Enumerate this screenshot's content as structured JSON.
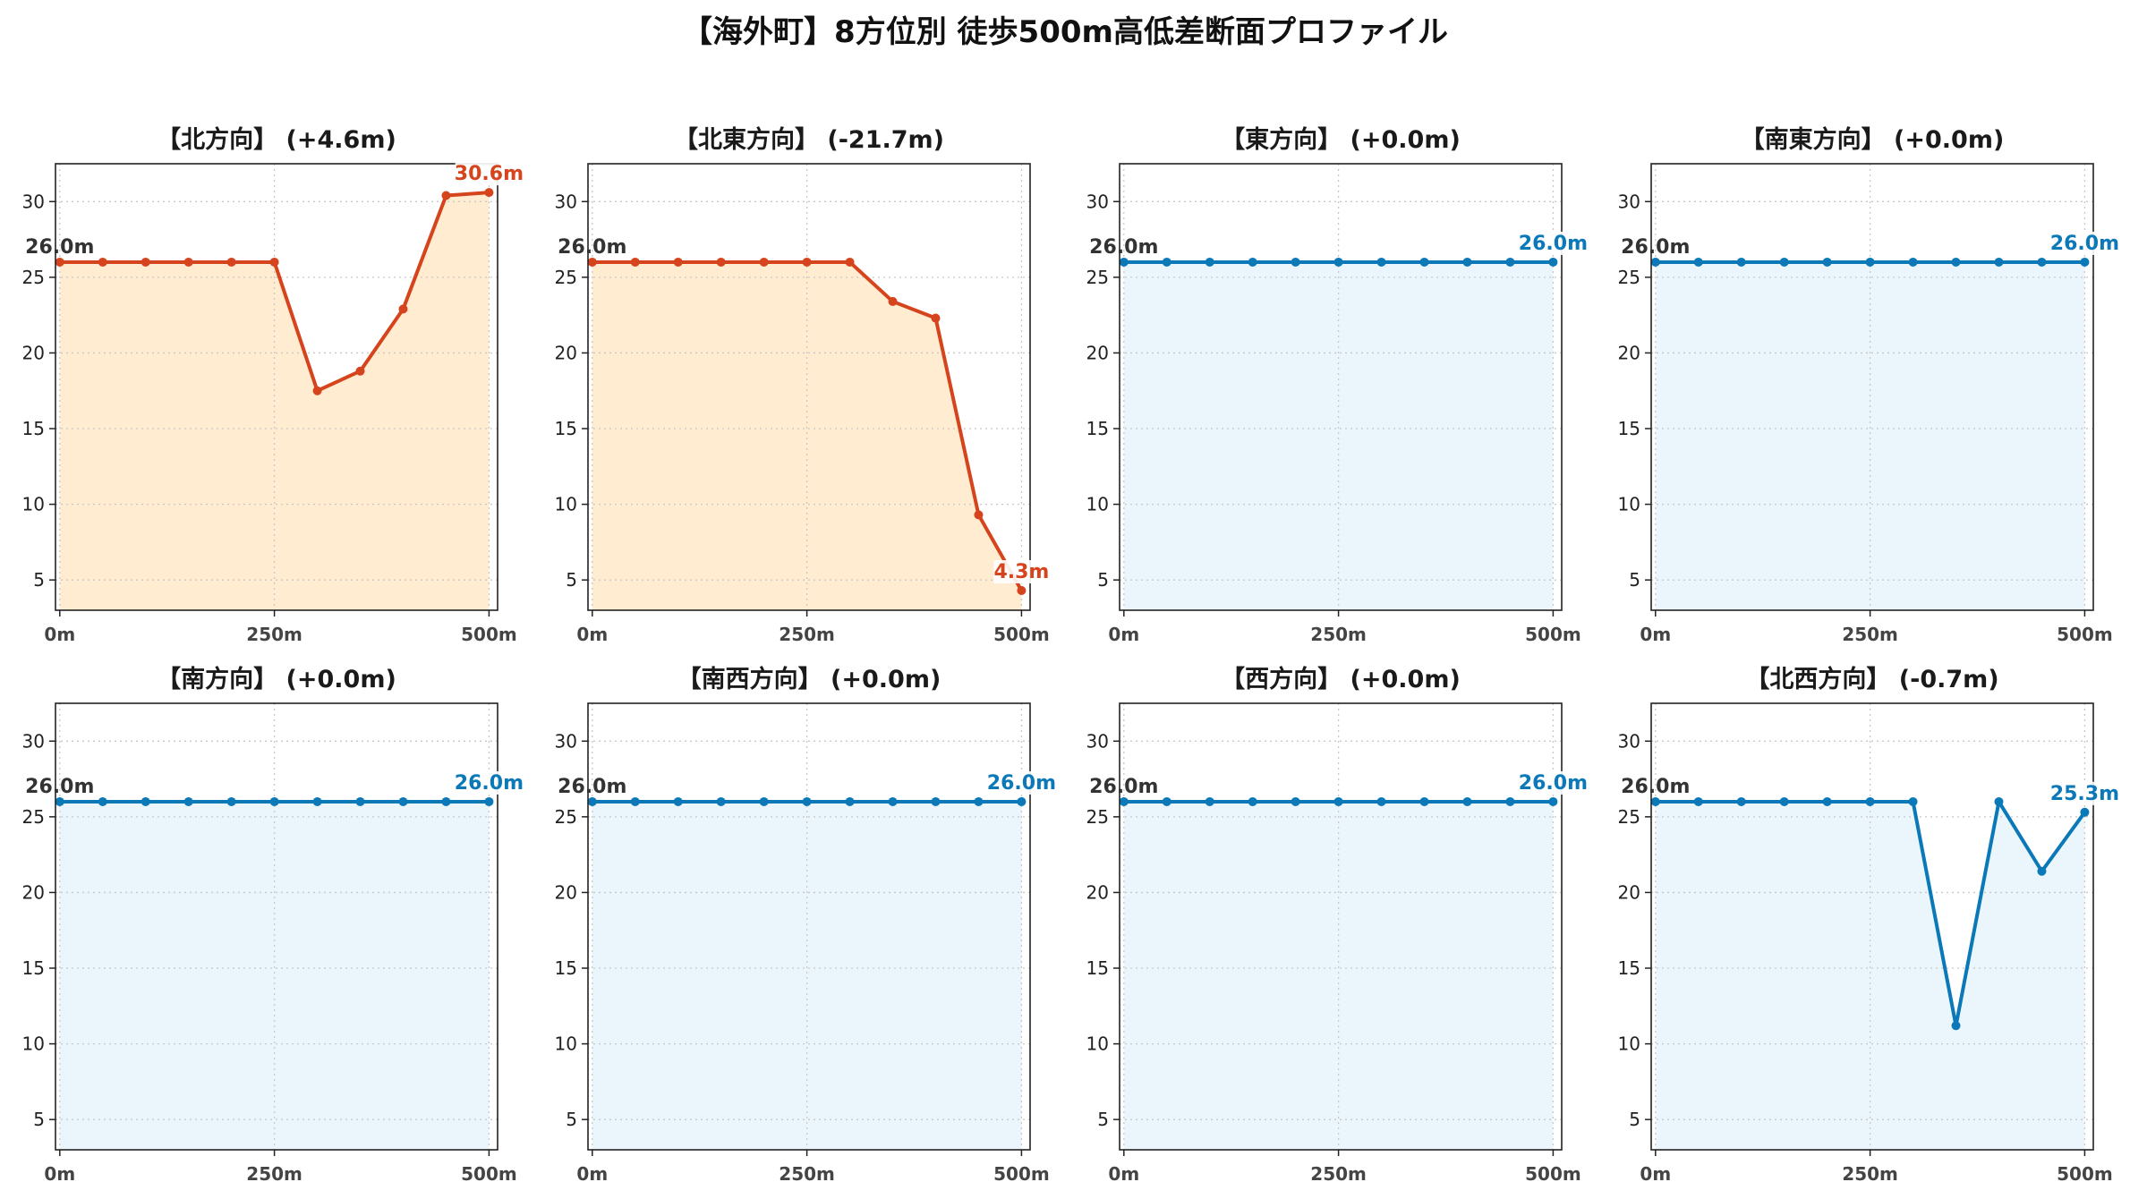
{
  "title": "【海外町】8方位別 徒歩500m高低差断面プロファイル",
  "colors": {
    "down_line": "#d5441c",
    "down_fill": "#ffecd1",
    "flat_line": "#0b78b8",
    "flat_fill": "#eaf6fb",
    "start_label": "#333333",
    "grid": "#c8c8c8",
    "axis": "#222222"
  },
  "chart_data": [
    {
      "type": "area",
      "title": "【北方向】 (+4.6m)",
      "x": [
        0,
        50,
        100,
        150,
        200,
        250,
        300,
        350,
        400,
        450,
        500
      ],
      "values": [
        26.0,
        26.0,
        26.0,
        26.0,
        26.0,
        26.0,
        17.5,
        18.8,
        22.9,
        30.4,
        30.6
      ],
      "start_label": "26.0m",
      "end_label": "30.6m",
      "color_scheme": "down",
      "xlim": [
        -5,
        510
      ],
      "ylim": [
        3,
        32.5
      ],
      "xticks": [
        0,
        250,
        500
      ],
      "xtick_labels": [
        "0m",
        "250m",
        "500m"
      ],
      "yticks": [
        5,
        10,
        15,
        20,
        25,
        30
      ],
      "ytick_labels": [
        "5",
        "10",
        "15",
        "20",
        "25",
        "30"
      ],
      "grid": true
    },
    {
      "type": "area",
      "title": "【北東方向】 (-21.7m)",
      "x": [
        0,
        50,
        100,
        150,
        200,
        250,
        300,
        350,
        400,
        450,
        500
      ],
      "values": [
        26.0,
        26.0,
        26.0,
        26.0,
        26.0,
        26.0,
        26.0,
        23.4,
        22.3,
        9.3,
        4.3
      ],
      "start_label": "26.0m",
      "end_label": "4.3m",
      "color_scheme": "down",
      "xlim": [
        -5,
        510
      ],
      "ylim": [
        3,
        32.5
      ],
      "xticks": [
        0,
        250,
        500
      ],
      "xtick_labels": [
        "0m",
        "250m",
        "500m"
      ],
      "yticks": [
        5,
        10,
        15,
        20,
        25,
        30
      ],
      "ytick_labels": [
        "5",
        "10",
        "15",
        "20",
        "25",
        "30"
      ],
      "grid": true
    },
    {
      "type": "area",
      "title": "【東方向】 (+0.0m)",
      "x": [
        0,
        50,
        100,
        150,
        200,
        250,
        300,
        350,
        400,
        450,
        500
      ],
      "values": [
        26.0,
        26.0,
        26.0,
        26.0,
        26.0,
        26.0,
        26.0,
        26.0,
        26.0,
        26.0,
        26.0
      ],
      "start_label": "26.0m",
      "end_label": "26.0m",
      "color_scheme": "flat",
      "xlim": [
        -5,
        510
      ],
      "ylim": [
        3,
        32.5
      ],
      "xticks": [
        0,
        250,
        500
      ],
      "xtick_labels": [
        "0m",
        "250m",
        "500m"
      ],
      "yticks": [
        5,
        10,
        15,
        20,
        25,
        30
      ],
      "ytick_labels": [
        "5",
        "10",
        "15",
        "20",
        "25",
        "30"
      ],
      "grid": true
    },
    {
      "type": "area",
      "title": "【南東方向】 (+0.0m)",
      "x": [
        0,
        50,
        100,
        150,
        200,
        250,
        300,
        350,
        400,
        450,
        500
      ],
      "values": [
        26.0,
        26.0,
        26.0,
        26.0,
        26.0,
        26.0,
        26.0,
        26.0,
        26.0,
        26.0,
        26.0
      ],
      "start_label": "26.0m",
      "end_label": "26.0m",
      "color_scheme": "flat",
      "xlim": [
        -5,
        510
      ],
      "ylim": [
        3,
        32.5
      ],
      "xticks": [
        0,
        250,
        500
      ],
      "xtick_labels": [
        "0m",
        "250m",
        "500m"
      ],
      "yticks": [
        5,
        10,
        15,
        20,
        25,
        30
      ],
      "ytick_labels": [
        "5",
        "10",
        "15",
        "20",
        "25",
        "30"
      ],
      "grid": true
    },
    {
      "type": "area",
      "title": "【南方向】 (+0.0m)",
      "x": [
        0,
        50,
        100,
        150,
        200,
        250,
        300,
        350,
        400,
        450,
        500
      ],
      "values": [
        26.0,
        26.0,
        26.0,
        26.0,
        26.0,
        26.0,
        26.0,
        26.0,
        26.0,
        26.0,
        26.0
      ],
      "start_label": "26.0m",
      "end_label": "26.0m",
      "color_scheme": "flat",
      "xlim": [
        -5,
        510
      ],
      "ylim": [
        3,
        32.5
      ],
      "xticks": [
        0,
        250,
        500
      ],
      "xtick_labels": [
        "0m",
        "250m",
        "500m"
      ],
      "yticks": [
        5,
        10,
        15,
        20,
        25,
        30
      ],
      "ytick_labels": [
        "5",
        "10",
        "15",
        "20",
        "25",
        "30"
      ],
      "grid": true
    },
    {
      "type": "area",
      "title": "【南西方向】 (+0.0m)",
      "x": [
        0,
        50,
        100,
        150,
        200,
        250,
        300,
        350,
        400,
        450,
        500
      ],
      "values": [
        26.0,
        26.0,
        26.0,
        26.0,
        26.0,
        26.0,
        26.0,
        26.0,
        26.0,
        26.0,
        26.0
      ],
      "start_label": "26.0m",
      "end_label": "26.0m",
      "color_scheme": "flat",
      "xlim": [
        -5,
        510
      ],
      "ylim": [
        3,
        32.5
      ],
      "xticks": [
        0,
        250,
        500
      ],
      "xtick_labels": [
        "0m",
        "250m",
        "500m"
      ],
      "yticks": [
        5,
        10,
        15,
        20,
        25,
        30
      ],
      "ytick_labels": [
        "5",
        "10",
        "15",
        "20",
        "25",
        "30"
      ],
      "grid": true
    },
    {
      "type": "area",
      "title": "【西方向】 (+0.0m)",
      "x": [
        0,
        50,
        100,
        150,
        200,
        250,
        300,
        350,
        400,
        450,
        500
      ],
      "values": [
        26.0,
        26.0,
        26.0,
        26.0,
        26.0,
        26.0,
        26.0,
        26.0,
        26.0,
        26.0,
        26.0
      ],
      "start_label": "26.0m",
      "end_label": "26.0m",
      "color_scheme": "flat",
      "xlim": [
        -5,
        510
      ],
      "ylim": [
        3,
        32.5
      ],
      "xticks": [
        0,
        250,
        500
      ],
      "xtick_labels": [
        "0m",
        "250m",
        "500m"
      ],
      "yticks": [
        5,
        10,
        15,
        20,
        25,
        30
      ],
      "ytick_labels": [
        "5",
        "10",
        "15",
        "20",
        "25",
        "30"
      ],
      "grid": true
    },
    {
      "type": "area",
      "title": "【北西方向】 (-0.7m)",
      "x": [
        0,
        50,
        100,
        150,
        200,
        250,
        300,
        350,
        400,
        450,
        500
      ],
      "values": [
        26.0,
        26.0,
        26.0,
        26.0,
        26.0,
        26.0,
        26.0,
        11.2,
        26.0,
        21.4,
        25.3
      ],
      "start_label": "26.0m",
      "end_label": "25.3m",
      "color_scheme": "flat",
      "xlim": [
        -5,
        510
      ],
      "ylim": [
        3,
        32.5
      ],
      "xticks": [
        0,
        250,
        500
      ],
      "xtick_labels": [
        "0m",
        "250m",
        "500m"
      ],
      "yticks": [
        5,
        10,
        15,
        20,
        25,
        30
      ],
      "ytick_labels": [
        "5",
        "10",
        "15",
        "20",
        "25",
        "30"
      ],
      "grid": true
    }
  ]
}
